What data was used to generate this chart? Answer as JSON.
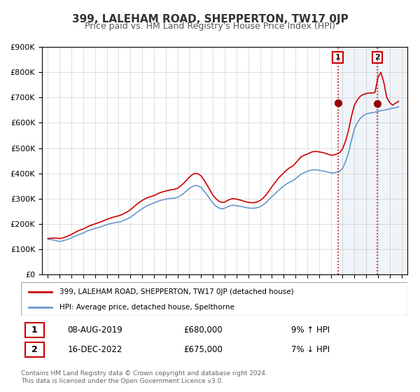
{
  "title": "399, LALEHAM ROAD, SHEPPERTON, TW17 0JP",
  "subtitle": "Price paid vs. HM Land Registry's House Price Index (HPI)",
  "hpi_label": "HPI: Average price, detached house, Spelthorne",
  "property_label": "399, LALEHAM ROAD, SHEPPERTON, TW17 0JP (detached house)",
  "red_color": "#cc0000",
  "blue_color": "#6699cc",
  "sale1_date": 2019.6,
  "sale1_price": 680000,
  "sale1_label": "1",
  "sale1_hpi_pct": "9% ↑ HPI",
  "sale1_date_str": "08-AUG-2019",
  "sale2_date": 2022.96,
  "sale2_price": 675000,
  "sale2_label": "2",
  "sale2_hpi_pct": "7% ↓ HPI",
  "sale2_date_str": "16-DEC-2022",
  "ylim_min": 0,
  "ylim_max": 900000,
  "xlim_min": 1994.5,
  "xlim_max": 2025.5,
  "ytick_values": [
    0,
    100000,
    200000,
    300000,
    400000,
    500000,
    600000,
    700000,
    800000,
    900000
  ],
  "ytick_labels": [
    "£0",
    "£100K",
    "£200K",
    "£300K",
    "£400K",
    "£500K",
    "£600K",
    "£700K",
    "£800K",
    "£900K"
  ],
  "xtick_values": [
    1995,
    1996,
    1997,
    1998,
    1999,
    2000,
    2001,
    2002,
    2003,
    2004,
    2005,
    2006,
    2007,
    2008,
    2009,
    2010,
    2011,
    2012,
    2013,
    2014,
    2015,
    2016,
    2017,
    2018,
    2019,
    2020,
    2021,
    2022,
    2023,
    2024,
    2025
  ],
  "footer_line1": "Contains HM Land Registry data © Crown copyright and database right 2024.",
  "footer_line2": "This data is licensed under the Open Government Licence v3.0.",
  "hpi_x": [
    1995.0,
    1995.25,
    1995.5,
    1995.75,
    1996.0,
    1996.25,
    1996.5,
    1996.75,
    1997.0,
    1997.25,
    1997.5,
    1997.75,
    1998.0,
    1998.25,
    1998.5,
    1998.75,
    1999.0,
    1999.25,
    1999.5,
    1999.75,
    2000.0,
    2000.25,
    2000.5,
    2000.75,
    2001.0,
    2001.25,
    2001.5,
    2001.75,
    2002.0,
    2002.25,
    2002.5,
    2002.75,
    2003.0,
    2003.25,
    2003.5,
    2003.75,
    2004.0,
    2004.25,
    2004.5,
    2004.75,
    2005.0,
    2005.25,
    2005.5,
    2005.75,
    2006.0,
    2006.25,
    2006.5,
    2006.75,
    2007.0,
    2007.25,
    2007.5,
    2007.75,
    2008.0,
    2008.25,
    2008.5,
    2008.75,
    2009.0,
    2009.25,
    2009.5,
    2009.75,
    2010.0,
    2010.25,
    2010.5,
    2010.75,
    2011.0,
    2011.25,
    2011.5,
    2011.75,
    2012.0,
    2012.25,
    2012.5,
    2012.75,
    2013.0,
    2013.25,
    2013.5,
    2013.75,
    2014.0,
    2014.25,
    2014.5,
    2014.75,
    2015.0,
    2015.25,
    2015.5,
    2015.75,
    2016.0,
    2016.25,
    2016.5,
    2016.75,
    2017.0,
    2017.25,
    2017.5,
    2017.75,
    2018.0,
    2018.25,
    2018.5,
    2018.75,
    2019.0,
    2019.25,
    2019.5,
    2019.75,
    2020.0,
    2020.25,
    2020.5,
    2020.75,
    2021.0,
    2021.25,
    2021.5,
    2021.75,
    2022.0,
    2022.25,
    2022.5,
    2022.75,
    2023.0,
    2023.25,
    2023.5,
    2023.75,
    2024.0,
    2024.25,
    2024.5,
    2024.75
  ],
  "hpi_y": [
    140000,
    138000,
    136000,
    133000,
    130000,
    133000,
    136000,
    140000,
    144000,
    150000,
    155000,
    160000,
    164000,
    170000,
    175000,
    178000,
    182000,
    185000,
    188000,
    193000,
    197000,
    200000,
    203000,
    205000,
    207000,
    210000,
    215000,
    220000,
    226000,
    235000,
    244000,
    252000,
    260000,
    267000,
    274000,
    278000,
    283000,
    288000,
    292000,
    295000,
    298000,
    300000,
    301000,
    302000,
    305000,
    312000,
    320000,
    330000,
    340000,
    348000,
    352000,
    350000,
    344000,
    330000,
    315000,
    298000,
    282000,
    270000,
    263000,
    260000,
    262000,
    268000,
    272000,
    274000,
    272000,
    270000,
    268000,
    265000,
    263000,
    262000,
    262000,
    264000,
    268000,
    275000,
    284000,
    296000,
    308000,
    318000,
    330000,
    340000,
    350000,
    358000,
    365000,
    370000,
    378000,
    388000,
    398000,
    402000,
    408000,
    412000,
    414000,
    414000,
    412000,
    410000,
    408000,
    405000,
    402000,
    402000,
    404000,
    408000,
    420000,
    445000,
    480000,
    530000,
    575000,
    600000,
    618000,
    628000,
    635000,
    638000,
    640000,
    642000,
    645000,
    648000,
    650000,
    652000,
    655000,
    658000,
    660000,
    663000
  ],
  "red_x": [
    1995.0,
    1995.25,
    1995.5,
    1995.75,
    1996.0,
    1996.25,
    1996.5,
    1996.75,
    1997.0,
    1997.25,
    1997.5,
    1997.75,
    1998.0,
    1998.25,
    1998.5,
    1998.75,
    1999.0,
    1999.25,
    1999.5,
    1999.75,
    2000.0,
    2000.25,
    2000.5,
    2000.75,
    2001.0,
    2001.25,
    2001.5,
    2001.75,
    2002.0,
    2002.25,
    2002.5,
    2002.75,
    2003.0,
    2003.25,
    2003.5,
    2003.75,
    2004.0,
    2004.25,
    2004.5,
    2004.75,
    2005.0,
    2005.25,
    2005.5,
    2005.75,
    2006.0,
    2006.25,
    2006.5,
    2006.75,
    2007.0,
    2007.25,
    2007.5,
    2007.75,
    2008.0,
    2008.25,
    2008.5,
    2008.75,
    2009.0,
    2009.25,
    2009.5,
    2009.75,
    2010.0,
    2010.25,
    2010.5,
    2010.75,
    2011.0,
    2011.25,
    2011.5,
    2011.75,
    2012.0,
    2012.25,
    2012.5,
    2012.75,
    2013.0,
    2013.25,
    2013.5,
    2013.75,
    2014.0,
    2014.25,
    2014.5,
    2014.75,
    2015.0,
    2015.25,
    2015.5,
    2015.75,
    2016.0,
    2016.25,
    2016.5,
    2016.75,
    2017.0,
    2017.25,
    2017.5,
    2017.75,
    2018.0,
    2018.25,
    2018.5,
    2018.75,
    2019.0,
    2019.25,
    2019.5,
    2019.75,
    2020.0,
    2020.25,
    2020.5,
    2020.75,
    2021.0,
    2021.25,
    2021.5,
    2021.75,
    2022.0,
    2022.25,
    2022.5,
    2022.75,
    2023.0,
    2023.25,
    2023.5,
    2023.75,
    2024.0,
    2024.25,
    2024.5,
    2024.75
  ],
  "red_y": [
    142000,
    143000,
    144000,
    143000,
    142000,
    144000,
    148000,
    153000,
    158000,
    165000,
    171000,
    176000,
    180000,
    186000,
    192000,
    196000,
    200000,
    204000,
    208000,
    213000,
    218000,
    222000,
    226000,
    229000,
    232000,
    236000,
    242000,
    248000,
    256000,
    266000,
    276000,
    285000,
    293000,
    299000,
    305000,
    308000,
    312000,
    318000,
    323000,
    327000,
    330000,
    333000,
    335000,
    337000,
    341000,
    350000,
    360000,
    372000,
    385000,
    395000,
    400000,
    398000,
    390000,
    373000,
    354000,
    334000,
    314000,
    300000,
    290000,
    285000,
    286000,
    293000,
    298000,
    300000,
    298000,
    295000,
    292000,
    288000,
    285000,
    284000,
    284000,
    287000,
    292000,
    302000,
    314000,
    330000,
    347000,
    362000,
    378000,
    390000,
    402000,
    413000,
    422000,
    428000,
    440000,
    453000,
    466000,
    472000,
    476000,
    482000,
    486000,
    487000,
    485000,
    483000,
    480000,
    476000,
    472000,
    473000,
    476000,
    482000,
    497000,
    527000,
    569000,
    625000,
    670000,
    690000,
    705000,
    712000,
    716000,
    718000,
    718000,
    720000,
    780000,
    800000,
    760000,
    700000,
    680000,
    670000,
    678000,
    685000
  ]
}
